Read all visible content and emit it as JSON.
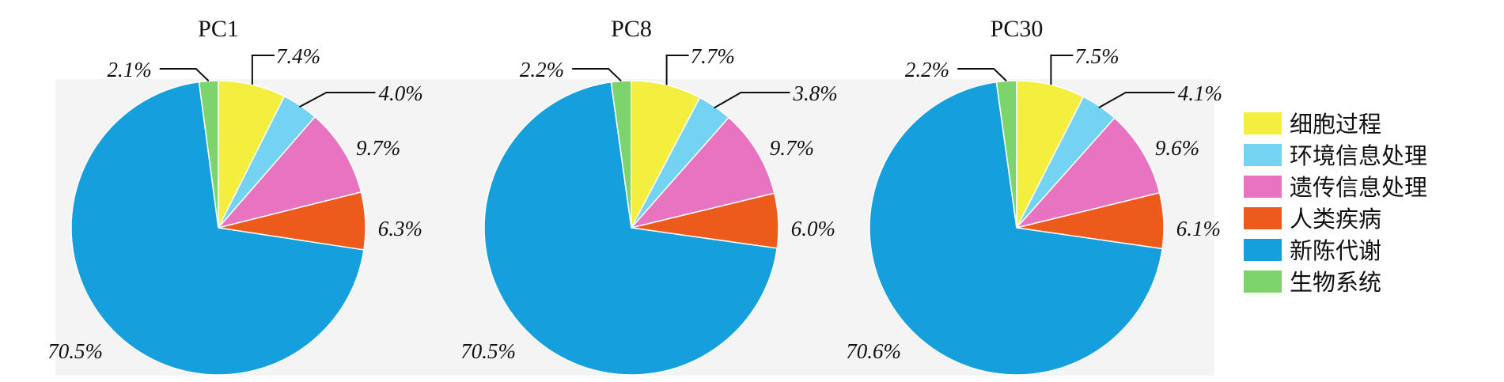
{
  "colors": {
    "细胞过程": "#f4ef3f",
    "环境信息处理": "#74d3f3",
    "遗传信息处理": "#e773c1",
    "人类疾病": "#ec5a1c",
    "新陈代谢": "#159fdc",
    "生物系统": "#7ed46c"
  },
  "chart_data": [
    {
      "type": "pie",
      "title": "PC1",
      "categories": [
        "细胞过程",
        "环境信息处理",
        "遗传信息处理",
        "人类疾病",
        "新陈代谢",
        "生物系统"
      ],
      "values": [
        7.4,
        4.0,
        9.7,
        6.3,
        70.5,
        2.1
      ],
      "labels": [
        "7.4%",
        "4.0%",
        "9.7%",
        "6.3%",
        "70.5%",
        "2.1%"
      ]
    },
    {
      "type": "pie",
      "title": "PC8",
      "categories": [
        "细胞过程",
        "环境信息处理",
        "遗传信息处理",
        "人类疾病",
        "新陈代谢",
        "生物系统"
      ],
      "values": [
        7.7,
        3.8,
        9.7,
        6.0,
        70.5,
        2.2
      ],
      "labels": [
        "7.7%",
        "3.8%",
        "9.7%",
        "6.0%",
        "70.5%",
        "2.2%"
      ]
    },
    {
      "type": "pie",
      "title": "PC30",
      "categories": [
        "细胞过程",
        "环境信息处理",
        "遗传信息处理",
        "人类疾病",
        "新陈代谢",
        "生物系统"
      ],
      "values": [
        7.5,
        4.1,
        9.6,
        6.1,
        70.6,
        2.2
      ],
      "labels": [
        "7.5%",
        "4.1%",
        "9.6%",
        "6.1%",
        "70.6%",
        "2.2%"
      ]
    }
  ],
  "legend": {
    "items": [
      "细胞过程",
      "环境信息处理",
      "遗传信息处理",
      "人类疾病",
      "新陈代谢",
      "生物系统"
    ],
    "placement": "right"
  }
}
